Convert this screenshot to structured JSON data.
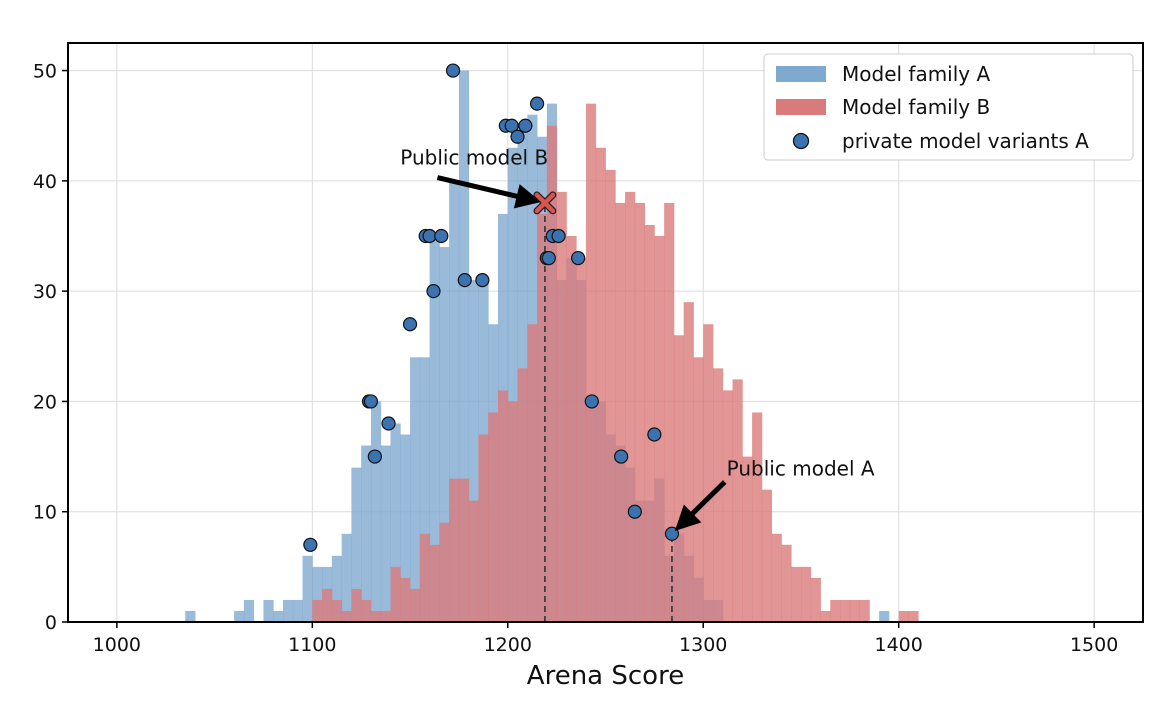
{
  "chart_data": {
    "type": "histogram",
    "xlabel": "Arena Score",
    "ylabel": "",
    "xlim": [
      975,
      1525
    ],
    "ylim": [
      0,
      52.5
    ],
    "x_ticks": [
      1000,
      1100,
      1200,
      1300,
      1400,
      1500
    ],
    "y_ticks": [
      0,
      10,
      20,
      30,
      40,
      50
    ],
    "grid": true,
    "legend_position": "top-right",
    "bin_width": 5,
    "colors": {
      "family_a": "#80a9d0",
      "family_b": "#d97b7b",
      "points": "#3b73b0",
      "marker_x": "#d9534f"
    },
    "series": [
      {
        "name": "Model family A",
        "bin_starts": [
          1035,
          1040,
          1045,
          1050,
          1055,
          1060,
          1065,
          1070,
          1075,
          1080,
          1085,
          1090,
          1095,
          1100,
          1105,
          1110,
          1115,
          1120,
          1125,
          1130,
          1135,
          1140,
          1145,
          1150,
          1155,
          1160,
          1165,
          1170,
          1175,
          1180,
          1185,
          1190,
          1195,
          1200,
          1205,
          1210,
          1215,
          1220,
          1225,
          1230,
          1235,
          1240,
          1245,
          1250,
          1255,
          1260,
          1265,
          1270,
          1275,
          1280,
          1285,
          1290,
          1295,
          1300,
          1305,
          1310,
          1315,
          1320,
          1325,
          1330,
          1335,
          1340,
          1345,
          1350,
          1355,
          1360,
          1365,
          1370,
          1375,
          1380,
          1385,
          1390,
          1395
        ],
        "counts": [
          1,
          0,
          0,
          0,
          0,
          1,
          2,
          0,
          2,
          1,
          2,
          2,
          6,
          5,
          5,
          6,
          8,
          14,
          16,
          20,
          16,
          18,
          17,
          24,
          24,
          35,
          34,
          40,
          50,
          31,
          31,
          27,
          37,
          43,
          45,
          46,
          44,
          47,
          31,
          33,
          31,
          20,
          20,
          17,
          16,
          14,
          11,
          11,
          13,
          6,
          8,
          6,
          4,
          2,
          2,
          0,
          0,
          0,
          0,
          0,
          0,
          0,
          0,
          0,
          0,
          0,
          0,
          0,
          0,
          0,
          0,
          1,
          0
        ]
      },
      {
        "name": "Model family B",
        "bin_starts": [
          1095,
          1100,
          1105,
          1110,
          1115,
          1120,
          1125,
          1130,
          1135,
          1140,
          1145,
          1150,
          1155,
          1160,
          1165,
          1170,
          1175,
          1180,
          1185,
          1190,
          1195,
          1200,
          1205,
          1210,
          1215,
          1220,
          1225,
          1230,
          1235,
          1240,
          1245,
          1250,
          1255,
          1260,
          1265,
          1270,
          1275,
          1280,
          1285,
          1290,
          1295,
          1300,
          1305,
          1310,
          1315,
          1320,
          1325,
          1330,
          1335,
          1340,
          1345,
          1350,
          1355,
          1360,
          1365,
          1370,
          1375,
          1380,
          1385,
          1390,
          1395,
          1400,
          1405,
          1410
        ],
        "counts": [
          0,
          2,
          3,
          2,
          1,
          3,
          2,
          1,
          1,
          5,
          4,
          3,
          8,
          7,
          9,
          13,
          13,
          11,
          17,
          19,
          21,
          20,
          23,
          27,
          37,
          45,
          39,
          35,
          33,
          47,
          43,
          41,
          38,
          39,
          38,
          36,
          35,
          38,
          26,
          29,
          24,
          27,
          23,
          21,
          22,
          15,
          19,
          12,
          8,
          7,
          5,
          5,
          4,
          1,
          2,
          2,
          2,
          2,
          0,
          0,
          0,
          1,
          1,
          0
        ]
      },
      {
        "name": "private model variants A",
        "points": [
          {
            "x": 1099,
            "y": 7
          },
          {
            "x": 1129,
            "y": 20
          },
          {
            "x": 1130,
            "y": 20
          },
          {
            "x": 1132,
            "y": 15
          },
          {
            "x": 1139,
            "y": 18
          },
          {
            "x": 1150,
            "y": 27
          },
          {
            "x": 1158,
            "y": 35
          },
          {
            "x": 1160,
            "y": 35
          },
          {
            "x": 1162,
            "y": 30
          },
          {
            "x": 1166,
            "y": 35
          },
          {
            "x": 1172,
            "y": 50
          },
          {
            "x": 1178,
            "y": 31
          },
          {
            "x": 1187,
            "y": 31
          },
          {
            "x": 1199,
            "y": 45
          },
          {
            "x": 1202,
            "y": 45
          },
          {
            "x": 1205,
            "y": 44
          },
          {
            "x": 1209,
            "y": 45
          },
          {
            "x": 1215,
            "y": 47
          },
          {
            "x": 1220,
            "y": 33
          },
          {
            "x": 1221,
            "y": 33
          },
          {
            "x": 1223,
            "y": 35
          },
          {
            "x": 1226,
            "y": 35
          },
          {
            "x": 1236,
            "y": 33
          },
          {
            "x": 1243,
            "y": 20
          },
          {
            "x": 1258,
            "y": 15
          },
          {
            "x": 1265,
            "y": 10
          },
          {
            "x": 1275,
            "y": 17
          },
          {
            "x": 1284,
            "y": 8
          }
        ]
      }
    ],
    "reference_lines": [
      {
        "x": 1219,
        "y_top": 38
      },
      {
        "x": 1284,
        "y_top": 8
      }
    ],
    "highlight_marker": {
      "x": 1219,
      "y": 38
    },
    "annotations": [
      {
        "text": "Public model B",
        "target": {
          "x": 1219,
          "y": 38
        },
        "text_anchor": {
          "x": 1145,
          "y": 41.5
        },
        "arrow_start": {
          "x": 1164,
          "y": 40.3
        }
      },
      {
        "text": "Public model A",
        "target": {
          "x": 1284,
          "y": 8
        },
        "text_anchor": {
          "x": 1312,
          "y": 13.3
        },
        "arrow_start": {
          "x": 1311,
          "y": 12.7
        }
      }
    ]
  }
}
